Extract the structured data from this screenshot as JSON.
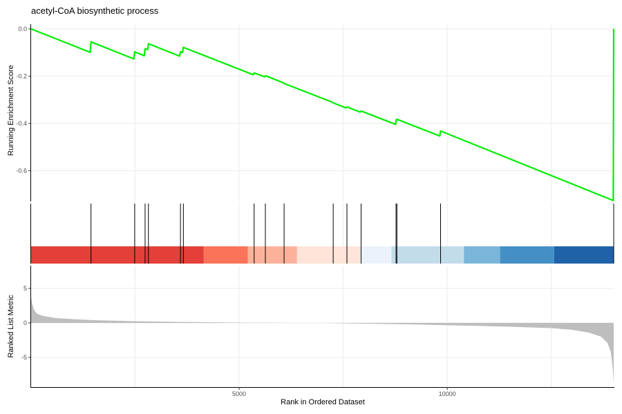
{
  "title": "acetyl-CoA biosynthetic process",
  "chart_data": [
    {
      "type": "line",
      "panel": "running-enrichment-score",
      "ylabel": "Running Enrichment Score",
      "xlim": [
        1,
        14000
      ],
      "ylim": [
        -0.73,
        0.02
      ],
      "yticks": [
        0.0,
        -0.2,
        -0.4,
        -0.6
      ],
      "ytick_labels": [
        "0.0",
        "-0.2",
        "-0.4",
        "-0.6"
      ],
      "grid": true,
      "color": "#00ee00",
      "x": [
        1,
        1420,
        1440,
        2470,
        2490,
        2720,
        2740,
        2800,
        2820,
        3570,
        3590,
        3640,
        3660,
        5340,
        5360,
        5610,
        5630,
        6060,
        6080,
        7240,
        7260,
        7570,
        7590,
        7910,
        7930,
        8760,
        8770,
        8790,
        9820,
        9840,
        13990,
        14000
      ],
      "y": [
        0.0,
        -0.099,
        -0.055,
        -0.127,
        -0.097,
        -0.114,
        -0.084,
        -0.088,
        -0.063,
        -0.115,
        -0.097,
        -0.1,
        -0.078,
        -0.194,
        -0.186,
        -0.203,
        -0.198,
        -0.228,
        -0.231,
        -0.31,
        -0.313,
        -0.334,
        -0.33,
        -0.352,
        -0.347,
        -0.404,
        -0.386,
        -0.382,
        -0.453,
        -0.432,
        -0.726,
        0.0
      ]
    },
    {
      "type": "rug",
      "panel": "gene-hits",
      "hits": [
        1440,
        2490,
        2740,
        2820,
        3590,
        3660,
        5360,
        5630,
        6080,
        7260,
        7590,
        7930,
        8770,
        8790,
        9840,
        14000
      ],
      "color_bands": [
        {
          "from": 1,
          "to": 4150,
          "color": "#e3403a"
        },
        {
          "from": 4150,
          "to": 5210,
          "color": "#fb7459"
        },
        {
          "from": 5210,
          "to": 6390,
          "color": "#fcb29a"
        },
        {
          "from": 6390,
          "to": 7910,
          "color": "#fee4d9"
        },
        {
          "from": 7910,
          "to": 8660,
          "color": "#ebf2fb"
        },
        {
          "from": 8660,
          "to": 10400,
          "color": "#c3dcea"
        },
        {
          "from": 10400,
          "to": 11270,
          "color": "#7ab6da"
        },
        {
          "from": 11270,
          "to": 12570,
          "color": "#4490c6"
        },
        {
          "from": 12570,
          "to": 14000,
          "color": "#1f62a8"
        }
      ]
    },
    {
      "type": "area",
      "panel": "ranked-list-metric",
      "ylabel": "Ranked List Metric",
      "xlabel": "Rank in Ordered Dataset",
      "xlim": [
        1,
        14000
      ],
      "ylim": [
        -9.3,
        8.3
      ],
      "yticks": [
        5,
        0,
        -5
      ],
      "ytick_labels": [
        "5",
        "0",
        "-5"
      ],
      "xticks": [
        5000,
        10000
      ],
      "xtick_labels": [
        "5000",
        "10000"
      ],
      "grid": true,
      "color": "#bebebe",
      "x": [
        1,
        30,
        80,
        150,
        300,
        600,
        1000,
        1500,
        2500,
        3500,
        5000,
        6500,
        6830,
        7500,
        9000,
        10500,
        11500,
        12500,
        13000,
        13400,
        13700,
        13850,
        13930,
        13975,
        14000
      ],
      "y": [
        3.8,
        2.7,
        1.8,
        1.3,
        1.0,
        0.7,
        0.55,
        0.4,
        0.25,
        0.15,
        0.05,
        0.0,
        0.0,
        -0.05,
        -0.2,
        -0.4,
        -0.55,
        -0.75,
        -1.0,
        -1.4,
        -2.0,
        -2.9,
        -4.2,
        -6.5,
        -8.8
      ]
    }
  ]
}
